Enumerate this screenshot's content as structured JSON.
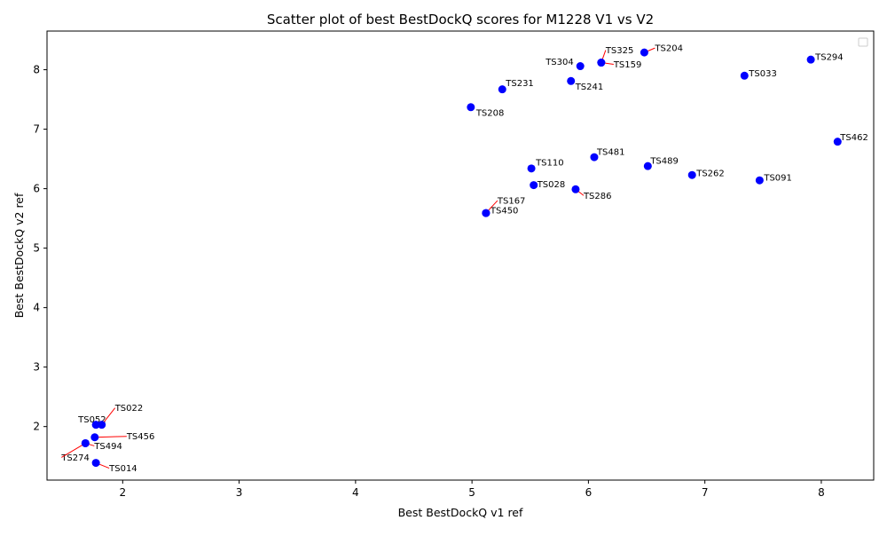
{
  "chart_data": {
    "type": "scatter",
    "title": "Scatter plot of best BestDockQ scores for M1228 V1 vs V2",
    "xlabel": "Best BestDockQ v1 ref",
    "ylabel": "Best BestDockQ v2 ref",
    "xlim": [
      1.35,
      8.45
    ],
    "ylim": [
      1.1,
      8.65
    ],
    "xticks": [
      2,
      3,
      4,
      5,
      6,
      7,
      8
    ],
    "yticks": [
      2,
      3,
      4,
      5,
      6,
      7,
      8
    ],
    "grid": false,
    "legend": "top-right",
    "point_color": "#0000ff",
    "leader_color": "#ff0000",
    "points": [
      {
        "label": "TS204",
        "x": 6.48,
        "y": 8.29
      },
      {
        "label": "TS294",
        "x": 7.91,
        "y": 8.17
      },
      {
        "label": "TS159",
        "x": 6.11,
        "y": 8.12
      },
      {
        "label": "TS325",
        "x": 6.11,
        "y": 8.12
      },
      {
        "label": "TS304",
        "x": 5.93,
        "y": 8.06
      },
      {
        "label": "TS033",
        "x": 7.34,
        "y": 7.9
      },
      {
        "label": "TS241",
        "x": 5.85,
        "y": 7.81
      },
      {
        "label": "TS231",
        "x": 5.26,
        "y": 7.67
      },
      {
        "label": "TS208",
        "x": 4.99,
        "y": 7.37
      },
      {
        "label": "TS462",
        "x": 8.14,
        "y": 6.79
      },
      {
        "label": "TS481",
        "x": 6.05,
        "y": 6.53
      },
      {
        "label": "TS489",
        "x": 6.51,
        "y": 6.38
      },
      {
        "label": "TS110",
        "x": 5.51,
        "y": 6.34
      },
      {
        "label": "TS262",
        "x": 6.89,
        "y": 6.23
      },
      {
        "label": "TS091",
        "x": 7.47,
        "y": 6.14
      },
      {
        "label": "TS028",
        "x": 5.53,
        "y": 6.06
      },
      {
        "label": "TS286",
        "x": 5.89,
        "y": 5.99
      },
      {
        "label": "TS450",
        "x": 5.12,
        "y": 5.59
      },
      {
        "label": "TS167",
        "x": 5.12,
        "y": 5.59
      },
      {
        "label": "TS022",
        "x": 1.82,
        "y": 2.03
      },
      {
        "label": "TS052",
        "x": 1.77,
        "y": 2.03
      },
      {
        "label": "TS456",
        "x": 1.76,
        "y": 1.82
      },
      {
        "label": "TS494",
        "x": 1.68,
        "y": 1.72
      },
      {
        "label": "TS274",
        "x": 1.68,
        "y": 1.72
      },
      {
        "label": "TS014",
        "x": 1.77,
        "y": 1.39
      }
    ]
  }
}
